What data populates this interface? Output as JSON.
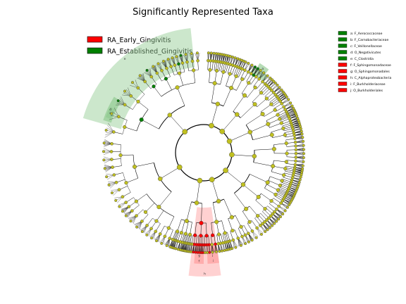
{
  "title": "Significantly Represented Taxa",
  "legend": [
    {
      "label": "RA_Early_Gingivitis",
      "color": "#ff0000"
    },
    {
      "label": "RA_Established_Gingivitis",
      "color": "#008000"
    }
  ],
  "colors": {
    "node_default": "#c0c020",
    "branch": "#000000",
    "early": "#ff0000",
    "established": "#008000",
    "early_shade": "#ff9999",
    "established_shade": "#8fca8f"
  },
  "clade_key": [
    {
      "letter": "a",
      "name": "F_Aerococcaceae",
      "group": "established"
    },
    {
      "letter": "b",
      "name": "F_Carnobacteriaceae",
      "group": "established"
    },
    {
      "letter": "c",
      "name": "F_Veillonellaceae",
      "group": "established"
    },
    {
      "letter": "d",
      "name": "O_Negativicutes",
      "group": "established"
    },
    {
      "letter": "e",
      "name": "C_Clostridia",
      "group": "established"
    },
    {
      "letter": "f",
      "name": "F_Sphingomonadaceae",
      "group": "early"
    },
    {
      "letter": "g",
      "name": "O_Sphingomonadales",
      "group": "early"
    },
    {
      "letter": "h",
      "name": "C_Alphaproteobacteria",
      "group": "early"
    },
    {
      "letter": "i",
      "name": "F_Burkholderiaceae",
      "group": "early"
    },
    {
      "letter": "j",
      "name": "O_Burkholderiales",
      "group": "early"
    }
  ],
  "highlighted_clades": [
    {
      "letter": "e",
      "group": "established",
      "angle_start": 196,
      "angle_end": 264,
      "r_inner": 122,
      "r_outer": 178
    },
    {
      "letter": "d",
      "group": "established",
      "angle_start": 198,
      "angle_end": 212,
      "r_inner": 138,
      "r_outer": 150
    },
    {
      "letter": "c",
      "group": "established",
      "angle_start": 200,
      "angle_end": 206,
      "r_inner": 140,
      "r_outer": 148
    },
    {
      "letter": "a",
      "group": "established",
      "angle_start": 302,
      "angle_end": 308,
      "r_inner": 140,
      "r_outer": 150
    },
    {
      "letter": "b",
      "group": "established",
      "angle_start": 300,
      "angle_end": 310,
      "r_inner": 132,
      "r_outer": 142
    },
    {
      "letter": "h",
      "group": "early",
      "angle_start": 82,
      "angle_end": 97,
      "r_inner": 78,
      "r_outer": 176
    },
    {
      "letter": "j",
      "group": "early",
      "angle_start": 82,
      "angle_end": 88,
      "r_inner": 132,
      "r_outer": 150
    },
    {
      "letter": "i",
      "group": "early",
      "angle_start": 82,
      "angle_end": 88,
      "r_inner": 150,
      "r_outer": 158
    },
    {
      "letter": "g",
      "group": "early",
      "angle_start": 90,
      "angle_end": 95,
      "r_inner": 132,
      "r_outer": 150
    },
    {
      "letter": "f",
      "group": "early",
      "angle_start": 90,
      "angle_end": 95,
      "r_inner": 150,
      "r_outer": 158
    }
  ]
}
